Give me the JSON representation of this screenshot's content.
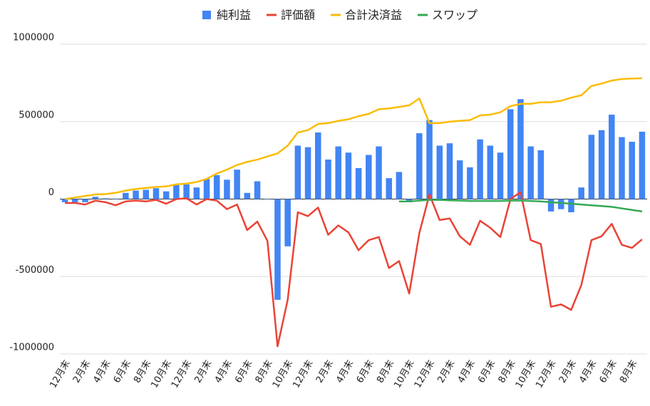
{
  "chart_data": {
    "type": "combo",
    "categories": [
      "12月末",
      null,
      "2月末",
      null,
      "4月末",
      null,
      "6月末",
      null,
      "8月末",
      null,
      "10月末",
      null,
      "12月末",
      null,
      "2月末",
      null,
      "4月末",
      null,
      "6月末",
      null,
      "8月末",
      null,
      "10月末",
      null,
      "12月末",
      null,
      "2月末",
      null,
      "4月末",
      null,
      "6月末",
      null,
      "8月末",
      null,
      "10月末",
      null,
      "12月末",
      null,
      "2月末",
      null,
      "4月末",
      null,
      "6月末",
      null,
      "8月末",
      null,
      "10月末",
      null,
      "12月末",
      null,
      "2月末",
      null,
      "4月末",
      null,
      "6月末",
      null,
      "8月末",
      null
    ],
    "series": [
      {
        "name": "純利益",
        "type": "bar",
        "color": "#4285f4",
        "values": [
          -20000,
          -20000,
          -20000,
          15000,
          5000,
          3000,
          40000,
          55000,
          60000,
          70000,
          50000,
          90000,
          95000,
          75000,
          130000,
          155000,
          125000,
          190000,
          40000,
          115000,
          0,
          -650000,
          -305000,
          345000,
          335000,
          430000,
          255000,
          340000,
          300000,
          200000,
          285000,
          340000,
          135000,
          175000,
          -20000,
          425000,
          510000,
          345000,
          360000,
          250000,
          205000,
          385000,
          345000,
          300000,
          580000,
          645000,
          340000,
          315000,
          -80000,
          -65000,
          -85000,
          75000,
          415000,
          445000,
          545000,
          400000,
          370000,
          435000
        ]
      },
      {
        "name": "評価額",
        "type": "line",
        "color": "#ea4335",
        "values": [
          -25000,
          -25000,
          -35000,
          -10000,
          -20000,
          -40000,
          -15000,
          -10000,
          -15000,
          -5000,
          -30000,
          0,
          5000,
          -35000,
          0,
          -10000,
          -65000,
          -35000,
          -200000,
          -145000,
          -270000,
          -950000,
          -650000,
          -85000,
          -110000,
          -55000,
          -230000,
          -170000,
          -215000,
          -330000,
          -265000,
          -245000,
          -445000,
          -400000,
          -610000,
          -220000,
          30000,
          -135000,
          -125000,
          -240000,
          -295000,
          -140000,
          -185000,
          -245000,
          0,
          45000,
          -265000,
          -290000,
          -695000,
          -680000,
          -715000,
          -555000,
          -265000,
          -240000,
          -160000,
          -295000,
          -315000,
          -260000
        ]
      },
      {
        "name": "合計決済益",
        "type": "line",
        "color": "#fbbc04",
        "values": [
          0,
          10000,
          20000,
          30000,
          32000,
          40000,
          55000,
          65000,
          72000,
          78000,
          82000,
          95000,
          100000,
          110000,
          130000,
          165000,
          190000,
          220000,
          240000,
          255000,
          275000,
          295000,
          345000,
          430000,
          445000,
          485000,
          490000,
          505000,
          515000,
          535000,
          550000,
          580000,
          585000,
          595000,
          605000,
          650000,
          490000,
          490000,
          500000,
          505000,
          510000,
          540000,
          545000,
          560000,
          600000,
          615000,
          615000,
          625000,
          625000,
          635000,
          655000,
          670000,
          730000,
          745000,
          765000,
          775000,
          778000,
          780000
        ]
      },
      {
        "name": "スワップ",
        "type": "line",
        "color": "#34a853",
        "values": [
          null,
          null,
          null,
          null,
          null,
          null,
          null,
          null,
          null,
          null,
          null,
          null,
          null,
          null,
          null,
          null,
          null,
          null,
          null,
          null,
          null,
          null,
          null,
          null,
          null,
          null,
          null,
          null,
          null,
          null,
          null,
          null,
          null,
          -15000,
          -15000,
          -10000,
          -5000,
          -5000,
          -8000,
          -10000,
          -12000,
          -12000,
          -12000,
          -12000,
          -10000,
          -10000,
          -12000,
          -15000,
          -20000,
          -25000,
          -30000,
          -35000,
          -40000,
          -45000,
          -50000,
          -60000,
          -70000,
          -80000
        ]
      }
    ],
    "ylim": [
      -1000000,
      1000000
    ],
    "yticks": [
      -1000000,
      -500000,
      0,
      500000,
      1000000
    ],
    "grid": true,
    "legend": "top"
  }
}
